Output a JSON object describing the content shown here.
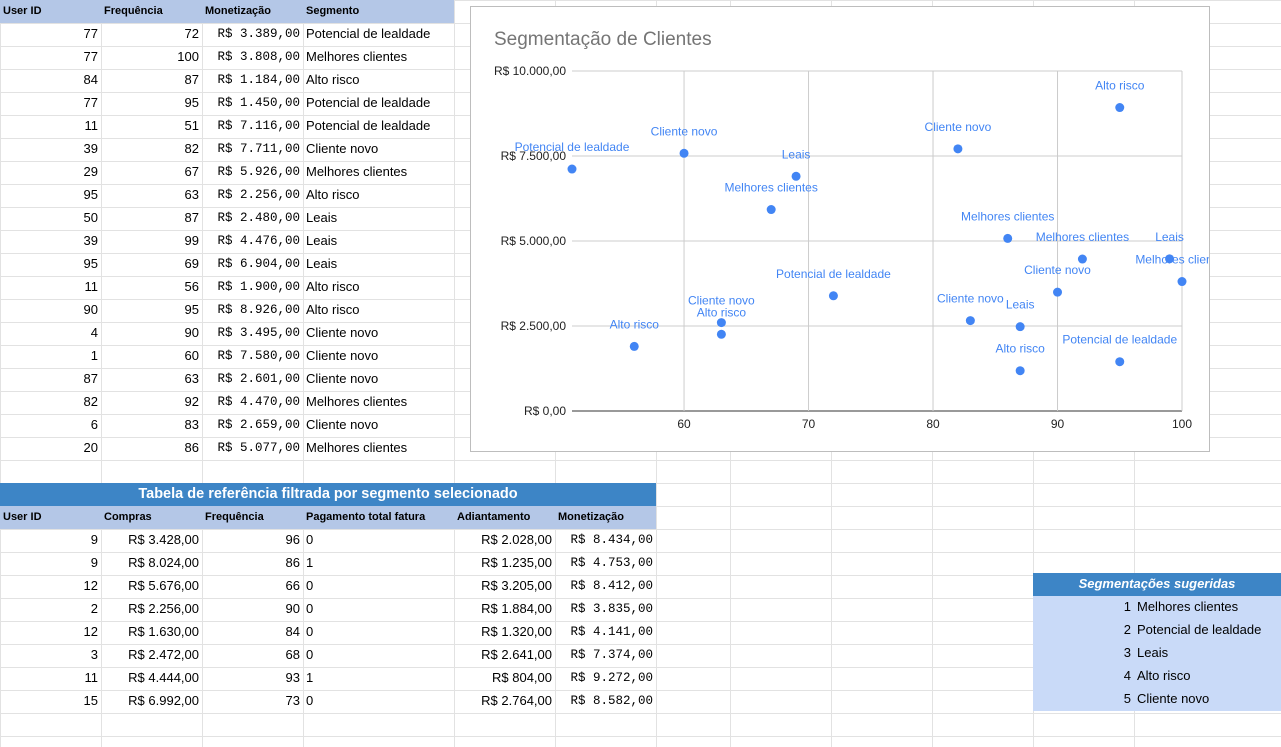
{
  "top_table": {
    "headers": [
      "User ID",
      "Frequência",
      "Monetização",
      "Segmento"
    ],
    "rows": [
      [
        "77",
        "72",
        "R$ 3.389,00",
        "Potencial de lealdade"
      ],
      [
        "77",
        "100",
        "R$ 3.808,00",
        "Melhores clientes"
      ],
      [
        "84",
        "87",
        "R$ 1.184,00",
        "Alto risco"
      ],
      [
        "77",
        "95",
        "R$ 1.450,00",
        "Potencial de lealdade"
      ],
      [
        "11",
        "51",
        "R$ 7.116,00",
        "Potencial de lealdade"
      ],
      [
        "39",
        "82",
        "R$ 7.711,00",
        "Cliente novo"
      ],
      [
        "29",
        "67",
        "R$ 5.926,00",
        "Melhores clientes"
      ],
      [
        "95",
        "63",
        "R$ 2.256,00",
        "Alto risco"
      ],
      [
        "50",
        "87",
        "R$ 2.480,00",
        "Leais"
      ],
      [
        "39",
        "99",
        "R$ 4.476,00",
        "Leais"
      ],
      [
        "95",
        "69",
        "R$ 6.904,00",
        "Leais"
      ],
      [
        "11",
        "56",
        "R$ 1.900,00",
        "Alto risco"
      ],
      [
        "90",
        "95",
        "R$ 8.926,00",
        "Alto risco"
      ],
      [
        "4",
        "90",
        "R$ 3.495,00",
        "Cliente novo"
      ],
      [
        "1",
        "60",
        "R$ 7.580,00",
        "Cliente novo"
      ],
      [
        "87",
        "63",
        "R$ 2.601,00",
        "Cliente novo"
      ],
      [
        "82",
        "92",
        "R$ 4.470,00",
        "Melhores clientes"
      ],
      [
        "6",
        "83",
        "R$ 2.659,00",
        "Cliente novo"
      ],
      [
        "20",
        "86",
        "R$ 5.077,00",
        "Melhores clientes"
      ]
    ]
  },
  "ref_table": {
    "title": "Tabela de referência filtrada por segmento selecionado",
    "headers": [
      "User ID",
      "Compras",
      "Frequência",
      "Pagamento total fatura",
      "Adiantamento",
      "Monetização"
    ],
    "rows": [
      [
        "9",
        "R$ 3.428,00",
        "96",
        "0",
        "R$ 2.028,00",
        "R$ 8.434,00"
      ],
      [
        "9",
        "R$ 8.024,00",
        "86",
        "1",
        "R$ 1.235,00",
        "R$ 4.753,00"
      ],
      [
        "12",
        "R$ 5.676,00",
        "66",
        "0",
        "R$ 3.205,00",
        "R$ 8.412,00"
      ],
      [
        "2",
        "R$ 2.256,00",
        "90",
        "0",
        "R$ 1.884,00",
        "R$ 3.835,00"
      ],
      [
        "12",
        "R$ 1.630,00",
        "84",
        "0",
        "R$ 1.320,00",
        "R$ 4.141,00"
      ],
      [
        "3",
        "R$ 2.472,00",
        "68",
        "0",
        "R$ 2.641,00",
        "R$ 7.374,00"
      ],
      [
        "11",
        "R$ 4.444,00",
        "93",
        "1",
        "R$ 804,00",
        "R$ 9.272,00"
      ],
      [
        "15",
        "R$ 6.992,00",
        "73",
        "0",
        "R$ 2.764,00",
        "R$ 8.582,00"
      ]
    ]
  },
  "segments": {
    "title": "Segmentações sugeridas",
    "items": [
      {
        "n": "1",
        "label": "Melhores clientes"
      },
      {
        "n": "2",
        "label": "Potencial de lealdade"
      },
      {
        "n": "3",
        "label": "Leais"
      },
      {
        "n": "4",
        "label": "Alto risco"
      },
      {
        "n": "5",
        "label": "Cliente novo"
      }
    ]
  },
  "colors": {
    "header_bg": "#b4c7e7",
    "banner_bg": "#3d85c6",
    "segment_bg": "#c9daf8",
    "point": "#4285f4",
    "point_label": "#4285f4"
  },
  "chart_data": {
    "type": "scatter",
    "title": "Segmentação de Clientes",
    "xlabel": "",
    "ylabel": "",
    "xlim": [
      51,
      100
    ],
    "ylim": [
      0,
      10000
    ],
    "x_ticks": [
      "60",
      "70",
      "80",
      "90",
      "100"
    ],
    "x_tick_values": [
      60,
      70,
      80,
      90,
      100
    ],
    "y_ticks": [
      "R$ 0,00",
      "R$ 2.500,00",
      "R$ 5.000,00",
      "R$ 7.500,00",
      "R$ 10.000,00"
    ],
    "y_tick_values": [
      0,
      2500,
      5000,
      7500,
      10000
    ],
    "grid": true,
    "legend": "none",
    "points": [
      {
        "x": 72,
        "y": 3389,
        "label": "Potencial de lealdade"
      },
      {
        "x": 100,
        "y": 3808,
        "label": "Melhores clientes"
      },
      {
        "x": 87,
        "y": 1184,
        "label": "Alto risco"
      },
      {
        "x": 95,
        "y": 1450,
        "label": "Potencial de lealdade"
      },
      {
        "x": 51,
        "y": 7116,
        "label": "Potencial de lealdade"
      },
      {
        "x": 82,
        "y": 7711,
        "label": "Cliente novo"
      },
      {
        "x": 67,
        "y": 5926,
        "label": "Melhores clientes"
      },
      {
        "x": 63,
        "y": 2256,
        "label": "Alto risco"
      },
      {
        "x": 87,
        "y": 2480,
        "label": "Leais"
      },
      {
        "x": 99,
        "y": 4476,
        "label": "Leais"
      },
      {
        "x": 69,
        "y": 6904,
        "label": "Leais"
      },
      {
        "x": 56,
        "y": 1900,
        "label": "Alto risco"
      },
      {
        "x": 95,
        "y": 8926,
        "label": "Alto risco"
      },
      {
        "x": 90,
        "y": 3495,
        "label": "Cliente novo"
      },
      {
        "x": 60,
        "y": 7580,
        "label": "Cliente novo"
      },
      {
        "x": 63,
        "y": 2601,
        "label": "Cliente novo"
      },
      {
        "x": 92,
        "y": 4470,
        "label": "Melhores clientes"
      },
      {
        "x": 83,
        "y": 2659,
        "label": "Cliente novo"
      },
      {
        "x": 86,
        "y": 5077,
        "label": "Melhores clientes"
      }
    ]
  }
}
